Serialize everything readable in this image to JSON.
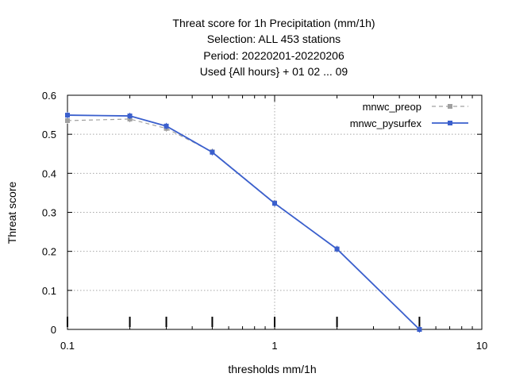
{
  "chart_data": {
    "type": "line",
    "title_lines": [
      "Threat score  for 1h Precipitation (mm/1h)",
      "Selection: ALL    453 stations",
      "Period: 20220201-20220206",
      "Used {All hours} + 01 02 ... 09"
    ],
    "xlabel": "thresholds mm/1h",
    "ylabel": "Threat score",
    "x_scale": "log",
    "xlim": [
      0.1,
      10
    ],
    "ylim": [
      0,
      0.6
    ],
    "x_ticks": [
      0.1,
      1,
      10
    ],
    "x_tick_labels": [
      "0.1",
      "1",
      "10"
    ],
    "y_ticks": [
      0,
      0.1,
      0.2,
      0.3,
      0.4,
      0.5,
      0.6
    ],
    "y_tick_labels": [
      "0",
      "0.1",
      "0.2",
      "0.3",
      "0.4",
      "0.5",
      "0.6"
    ],
    "x_threshold_marks": [
      0.1,
      0.2,
      0.3,
      0.5,
      1,
      2,
      5
    ],
    "grid": true,
    "legend_position": "top-right",
    "series": [
      {
        "name": "mnwc_preop",
        "color": "#a0a0a0",
        "dash": true,
        "x": [
          0.1,
          0.2,
          0.3,
          0.5,
          1,
          2,
          5
        ],
        "y": [
          0.535,
          0.539,
          0.515,
          0.455,
          0.324,
          0.206,
          0.0
        ]
      },
      {
        "name": "mnwc_pysurfex",
        "color": "#3a5fcd",
        "dash": false,
        "x": [
          0.1,
          0.2,
          0.3,
          0.5,
          1,
          2,
          5
        ],
        "y": [
          0.549,
          0.547,
          0.521,
          0.454,
          0.323,
          0.206,
          0.0
        ]
      }
    ]
  }
}
